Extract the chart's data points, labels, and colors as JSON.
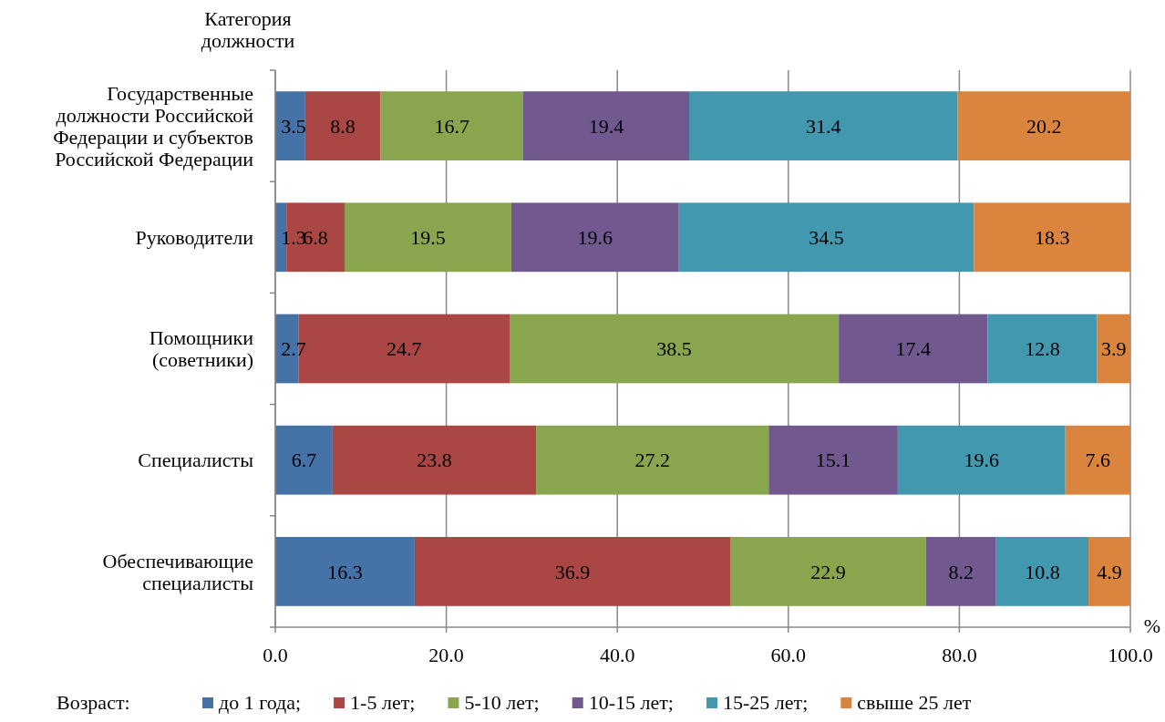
{
  "chart_data": {
    "type": "bar",
    "orientation": "horizontal",
    "stacked": true,
    "ylabel": "Категория должности",
    "xlabel": "%",
    "legend_title": "Возраст:",
    "categories": [
      "Государственные должности Российской Федерации и субъектов Российской Федерации",
      "Руководители",
      "Помощники (советники)",
      "Специалисты",
      "Обеспечивающие специалисты"
    ],
    "series": [
      {
        "name": "до 1 года;",
        "color": "#4572a7",
        "values": [
          3.5,
          1.3,
          2.7,
          6.7,
          16.3
        ]
      },
      {
        "name": "1-5 лет;",
        "color": "#aa4643",
        "values": [
          8.8,
          6.8,
          24.7,
          23.8,
          36.9
        ]
      },
      {
        "name": "5-10 лет;",
        "color": "#89a54e",
        "values": [
          16.7,
          19.5,
          38.5,
          27.2,
          22.9
        ]
      },
      {
        "name": "10-15 лет;",
        "color": "#71588f",
        "values": [
          19.4,
          19.6,
          17.4,
          15.1,
          8.2
        ]
      },
      {
        "name": "15-25 лет;",
        "color": "#4198af",
        "values": [
          31.4,
          34.5,
          12.8,
          19.6,
          10.8
        ]
      },
      {
        "name": "свыше 25 лет",
        "color": "#db843d",
        "values": [
          20.2,
          18.3,
          3.9,
          7.6,
          4.9
        ]
      }
    ],
    "xlim": [
      0,
      100
    ],
    "xticks": [
      {
        "value": 0,
        "label": "0.0"
      },
      {
        "value": 20,
        "label": "20.0"
      },
      {
        "value": 40,
        "label": "40.0"
      },
      {
        "value": 60,
        "label": "60.0"
      },
      {
        "value": 80,
        "label": "80.0"
      },
      {
        "value": 100,
        "label": "100.0"
      }
    ],
    "grid": "x",
    "legend": "bottom",
    "data_labels": true
  }
}
